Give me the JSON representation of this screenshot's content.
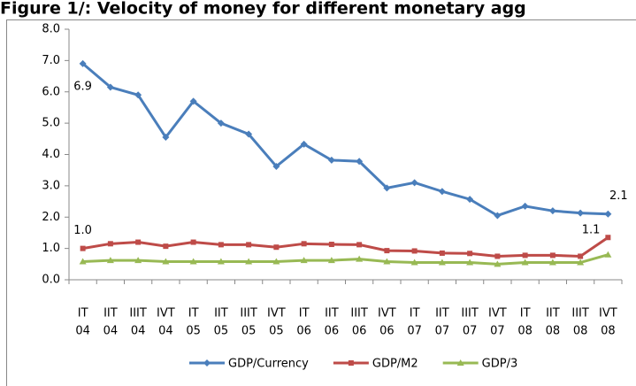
{
  "chart_data": {
    "type": "line",
    "title": "Figure 1/: Velocity of money for different monetary agg",
    "categories": [
      [
        "IT",
        "04"
      ],
      [
        "IIT",
        "04"
      ],
      [
        "IIIT",
        "04"
      ],
      [
        "IVT",
        "04"
      ],
      [
        "IT",
        "05"
      ],
      [
        "IIT",
        "05"
      ],
      [
        "IIIT",
        "05"
      ],
      [
        "IVT",
        "05"
      ],
      [
        "IT",
        "06"
      ],
      [
        "IIT",
        "06"
      ],
      [
        "IIIT",
        "06"
      ],
      [
        "IVT",
        "06"
      ],
      [
        "IT",
        "07"
      ],
      [
        "IIT",
        "07"
      ],
      [
        "IIIT",
        "07"
      ],
      [
        "IVT",
        "07"
      ],
      [
        "IT",
        "08"
      ],
      [
        "IIT",
        "08"
      ],
      [
        "IIIT",
        "08"
      ],
      [
        "IVT",
        "08"
      ]
    ],
    "series": [
      {
        "name": "GDP/Currency",
        "color": "#4a7ebb",
        "marker": "diamond",
        "values": [
          6.9,
          6.15,
          5.9,
          4.55,
          5.7,
          5.0,
          4.65,
          3.62,
          4.33,
          3.82,
          3.78,
          2.93,
          3.1,
          2.82,
          2.57,
          2.05,
          2.35,
          2.2,
          2.13,
          2.1
        ],
        "value_labels": [
          "6.9",
          null,
          null,
          null,
          null,
          null,
          null,
          null,
          null,
          null,
          null,
          null,
          null,
          null,
          null,
          null,
          null,
          null,
          null,
          "2.1"
        ]
      },
      {
        "name": "GDP/M2",
        "color": "#be4b48",
        "marker": "square",
        "values": [
          1.0,
          1.15,
          1.2,
          1.07,
          1.2,
          1.12,
          1.12,
          1.04,
          1.15,
          1.13,
          1.12,
          0.93,
          0.92,
          0.85,
          0.84,
          0.75,
          0.78,
          0.78,
          0.75,
          1.35
        ],
        "value_labels": [
          "1.0",
          null,
          null,
          null,
          null,
          null,
          null,
          null,
          null,
          null,
          null,
          null,
          null,
          null,
          null,
          null,
          null,
          null,
          null,
          null
        ]
      },
      {
        "name": "GDP/3",
        "color": "#98b954",
        "marker": "triangle",
        "values": [
          0.58,
          0.62,
          0.62,
          0.58,
          0.58,
          0.58,
          0.58,
          0.58,
          0.62,
          0.62,
          0.66,
          0.58,
          0.55,
          0.55,
          0.55,
          0.5,
          0.55,
          0.55,
          0.55,
          0.8
        ]
      }
    ],
    "annotations": [
      "1.1"
    ],
    "ylim": [
      0,
      8
    ],
    "yticks": [
      {
        "value": 0,
        "label": "0.0"
      },
      {
        "value": 1,
        "label": "1.0"
      },
      {
        "value": 2,
        "label": "2.0"
      },
      {
        "value": 3,
        "label": "3.0"
      },
      {
        "value": 4,
        "label": "4.0"
      },
      {
        "value": 5,
        "label": "5.0"
      },
      {
        "value": 6,
        "label": "6.0"
      },
      {
        "value": 7,
        "label": "7.0"
      },
      {
        "value": 8,
        "label": "8.0"
      }
    ],
    "grid": false,
    "legend": "bottom"
  }
}
